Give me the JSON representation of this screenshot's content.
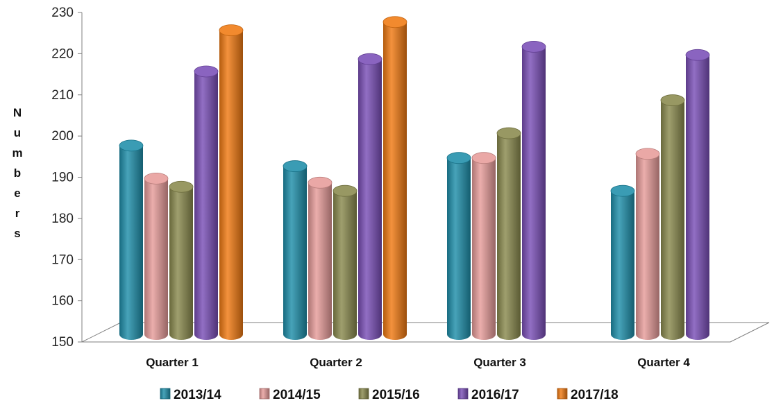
{
  "chart_data": {
    "type": "bar",
    "title": "",
    "xlabel": "",
    "ylabel": "Numbers",
    "ylim": [
      150,
      230
    ],
    "yticks": [
      150,
      160,
      170,
      180,
      190,
      200,
      210,
      220,
      230
    ],
    "categories": [
      "Quarter 1",
      "Quarter 2",
      "Quarter 3",
      "Quarter 4"
    ],
    "series": [
      {
        "name": "2013/14",
        "color": "#1F8FAA",
        "values": [
          196,
          191,
          193,
          185
        ]
      },
      {
        "name": "2014/15",
        "color": "#E79C9A",
        "values": [
          188,
          187,
          193,
          194
        ]
      },
      {
        "name": "2015/16",
        "color": "#8A8A4E",
        "values": [
          186,
          185,
          199,
          207
        ]
      },
      {
        "name": "2016/17",
        "color": "#7A4FB7",
        "values": [
          214,
          217,
          220,
          218
        ]
      },
      {
        "name": "2017/18",
        "color": "#F07A12",
        "values": [
          224,
          226,
          null,
          null
        ]
      }
    ],
    "legend_position": "bottom",
    "grid": false,
    "style": "3d-cylinder"
  }
}
